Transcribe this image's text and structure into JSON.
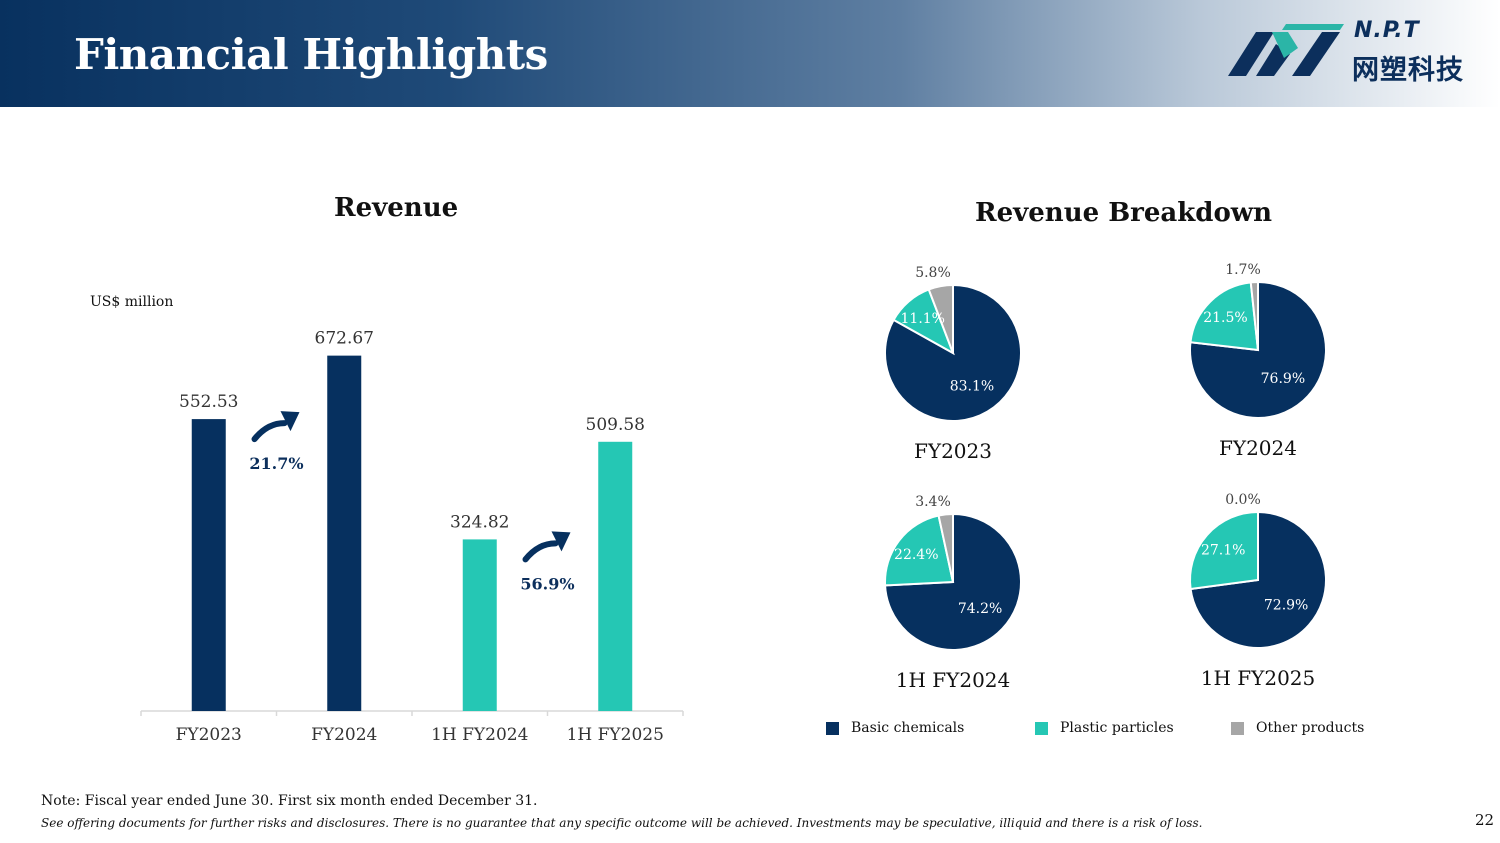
{
  "header": {
    "title": "Financial Highlights"
  },
  "logo": {
    "name_en": "N.P.T",
    "name_cn": "网塑科技"
  },
  "colors": {
    "basic": "#06305f",
    "plastic": "#25c7b4",
    "other": "#a6a6a6"
  },
  "chart_data": [
    {
      "type": "bar",
      "title": "Revenue",
      "ylabel": "US$ million",
      "categories": [
        "FY2023",
        "FY2024",
        "1H FY2024",
        "1H FY2025"
      ],
      "values": [
        552.53,
        672.67,
        324.82,
        509.58
      ],
      "value_labels": [
        "552.53",
        "672.67",
        "324.82",
        "509.58"
      ],
      "bar_colors": [
        "#06305f",
        "#06305f",
        "#25c7b4",
        "#25c7b4"
      ],
      "ylim": [
        0,
        700
      ],
      "annotations": [
        {
          "text": "21.7%",
          "from": "FY2023",
          "to": "FY2024"
        },
        {
          "text": "56.9%",
          "from": "1H FY2024",
          "to": "1H FY2025"
        }
      ]
    },
    {
      "type": "pie",
      "title": "Revenue Breakdown",
      "legend": [
        "Basic chemicals",
        "Plastic particles",
        "Other products"
      ],
      "pies": [
        {
          "label": "FY2023",
          "values": [
            83.1,
            11.1,
            5.8
          ],
          "value_labels": [
            "83.1%",
            "11.1%",
            "5.8%"
          ]
        },
        {
          "label": "FY2024",
          "values": [
            76.9,
            21.5,
            1.7
          ],
          "value_labels": [
            "76.9%",
            "21.5%",
            "1.7%"
          ]
        },
        {
          "label": "1H FY2024",
          "values": [
            74.2,
            22.4,
            3.4
          ],
          "value_labels": [
            "74.2%",
            "22.4%",
            "3.4%"
          ]
        },
        {
          "label": "1H FY2025",
          "values": [
            72.9,
            27.1,
            0.0
          ],
          "value_labels": [
            "72.9%",
            "27.1%",
            "0.0%"
          ]
        }
      ]
    }
  ],
  "footer": {
    "note": "Note: Fiscal year ended June 30. First six month ended December 31.",
    "disclaimer": "See offering documents for further risks and disclosures. There is no guarantee that any specific outcome will be achieved. Investments may be speculative, illiquid and there is a risk of loss.",
    "page": "22"
  }
}
